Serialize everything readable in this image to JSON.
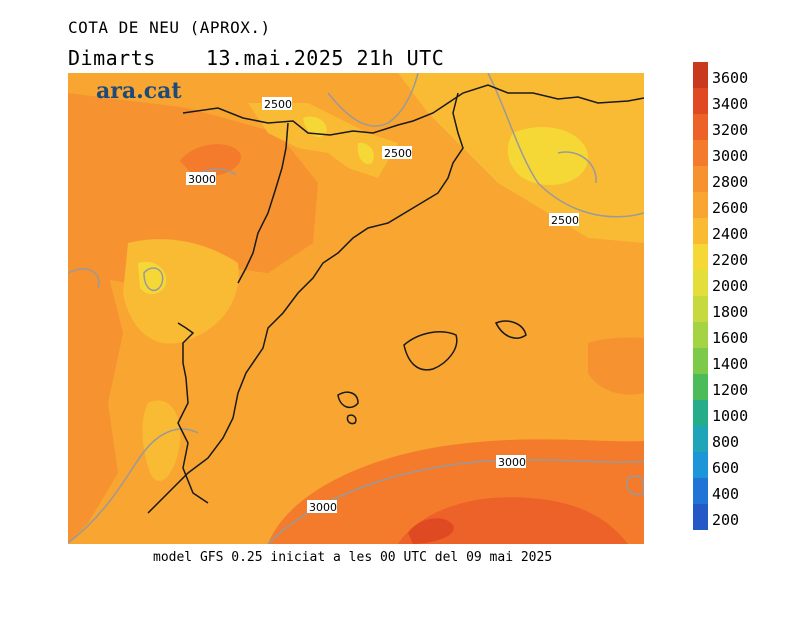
{
  "header": {
    "title": "COTA DE NEU (APROX.)",
    "subtitle": "Dimarts    13.mai.2025 21h UTC"
  },
  "logo": {
    "text": "ara.cat"
  },
  "footer": {
    "text": "model GFS 0.25 iniciat a les 00 UTC del 09 mai 2025"
  },
  "contour_labels": [
    "2500",
    "2500",
    "2500",
    "3000",
    "3000",
    "3000"
  ],
  "legend": {
    "labels": [
      "3600",
      "3400",
      "3200",
      "3000",
      "2800",
      "2600",
      "2400",
      "2200",
      "2000",
      "1800",
      "1600",
      "1400",
      "1200",
      "1000",
      "800",
      "600",
      "400",
      "200"
    ],
    "colors": [
      "#c8391e",
      "#e04a22",
      "#ec6228",
      "#f47a2c",
      "#f6922f",
      "#f8a531",
      "#f9ba34",
      "#f5d836",
      "#e4de3a",
      "#c6d93f",
      "#a4d444",
      "#7dca4a",
      "#4cbc5a",
      "#25ad8a",
      "#1ea6b8",
      "#1d95d9",
      "#1f74d6",
      "#2558c7"
    ]
  }
}
